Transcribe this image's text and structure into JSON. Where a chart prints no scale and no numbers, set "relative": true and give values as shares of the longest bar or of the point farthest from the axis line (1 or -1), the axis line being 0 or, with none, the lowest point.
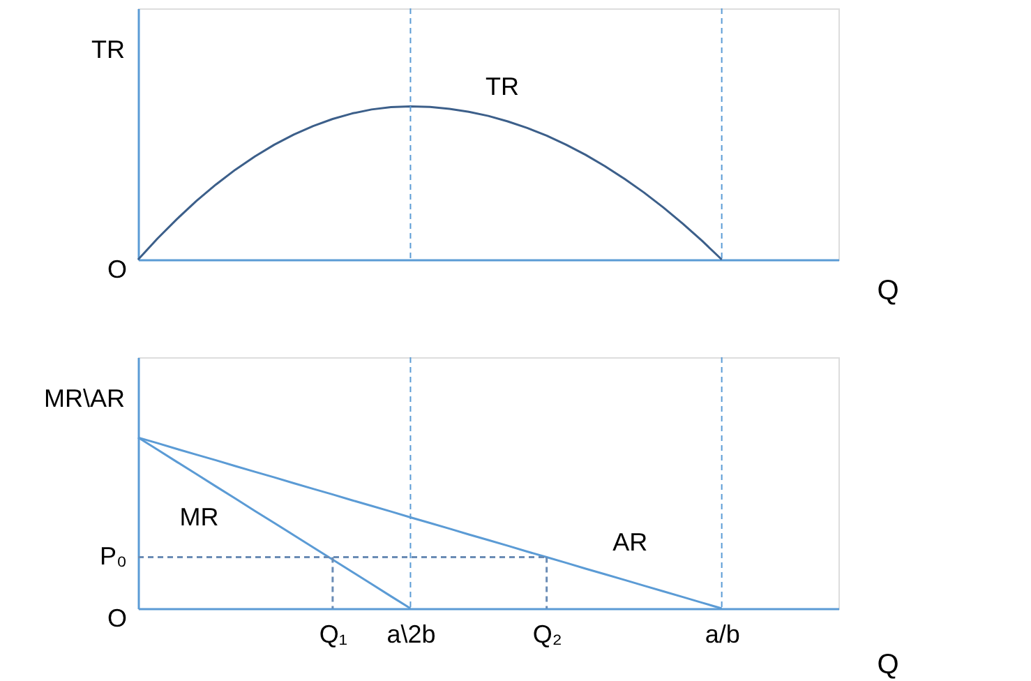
{
  "chart_data": [
    {
      "type": "line",
      "relative": true,
      "ylabel": "TR",
      "xlabel": "Q",
      "tick_labels": false,
      "grid": false,
      "marker": "none",
      "categories": [
        null,
        null,
        null,
        null,
        null,
        null,
        null,
        null,
        null,
        null,
        "Q₁",
        null,
        null,
        null,
        "a\\2b",
        null,
        null,
        null,
        null,
        null,
        null,
        "Q₂",
        null,
        null,
        null,
        null,
        null,
        null,
        null,
        null,
        "a/b",
        null,
        null,
        null,
        null,
        null,
        null
      ],
      "series": [
        {
          "name": "TR",
          "color": "#3c5f8a",
          "line_style": "solid",
          "values": [
            0,
            0.138,
            0.265,
            0.383,
            0.49,
            0.587,
            0.673,
            0.75,
            0.816,
            0.872,
            0.918,
            0.954,
            0.98,
            0.995,
            1,
            0.996,
            0.984,
            0.965,
            0.938,
            0.902,
            0.859,
            0.809,
            0.75,
            0.684,
            0.609,
            0.527,
            0.438,
            0.34,
            0.234,
            0.121,
            0,
            null,
            null,
            null,
            null,
            null,
            null
          ]
        }
      ],
      "ref_lines": [
        {
          "axis": "x",
          "value": "a\\2b",
          "label": null,
          "color": "#5b9bd5",
          "line_style": "dashed"
        },
        {
          "axis": "x",
          "value": "a/b",
          "label": null,
          "color": "#5b9bd5",
          "line_style": "dashed"
        }
      ],
      "annotations": [
        "O"
      ]
    },
    {
      "type": "line",
      "relative": true,
      "ylabel": "MR\\AR",
      "xlabel": "Q",
      "grid": false,
      "marker": "none",
      "categories": [
        null,
        null,
        null,
        null,
        null,
        null,
        null,
        null,
        null,
        null,
        "Q₁",
        null,
        null,
        null,
        "a\\2b",
        null,
        null,
        null,
        null,
        null,
        null,
        "Q₂",
        null,
        null,
        null,
        null,
        null,
        null,
        null,
        null,
        "a/b",
        null,
        null,
        null,
        null,
        null,
        null
      ],
      "series": [
        {
          "name": "AR",
          "color": "#5b9bd5",
          "line_style": "solid",
          "values": [
            1,
            0.967,
            0.933,
            0.9,
            0.867,
            0.833,
            0.8,
            0.767,
            0.733,
            0.7,
            0.667,
            0.633,
            0.6,
            0.567,
            0.533,
            0.5,
            0.467,
            0.433,
            0.4,
            0.367,
            0.333,
            0.3,
            0.267,
            0.233,
            0.2,
            0.167,
            0.133,
            0.1,
            0.067,
            0.033,
            0,
            null,
            null,
            null,
            null,
            null,
            null
          ]
        },
        {
          "name": "MR",
          "color": "#5b9bd5",
          "line_style": "solid",
          "values": [
            1,
            0.929,
            0.857,
            0.786,
            0.714,
            0.643,
            0.571,
            0.5,
            0.429,
            0.357,
            0.286,
            0.214,
            0.143,
            0.071,
            0,
            null,
            null,
            null,
            null,
            null,
            null,
            null,
            null,
            null,
            null,
            null,
            null,
            null,
            null,
            null,
            null,
            null,
            null,
            null,
            null,
            null,
            null
          ]
        },
        {
          "color": "#6a8cb5",
          "line_style": "dashed",
          "values": [
            0.3,
            0.3,
            0.3,
            0.3,
            0.3,
            0.3,
            0.3,
            0.3,
            0.3,
            0.3,
            0.3,
            0.3,
            0.3,
            0.3,
            0.3,
            0.3,
            0.3,
            0.3,
            0.3,
            0.3,
            0.3,
            0.3,
            null,
            null,
            null,
            null,
            null,
            null,
            null,
            null,
            null,
            null,
            null,
            null,
            null,
            null,
            null
          ]
        },
        {
          "color": "#6a8cb5",
          "line_style": "dashed",
          "x": [
            "Q₁",
            "Q₁"
          ],
          "values": [
            0.3,
            0
          ]
        },
        {
          "color": "#6a8cb5",
          "line_style": "dashed",
          "x": [
            "Q₂",
            "Q₂"
          ],
          "values": [
            0.3,
            0
          ]
        }
      ],
      "ref_lines": [
        {
          "axis": "x",
          "value": "a\\2b",
          "label": null,
          "color": "#5b9bd5",
          "line_style": "dashed"
        },
        {
          "axis": "x",
          "value": "a/b",
          "label": null,
          "color": "#5b9bd5",
          "line_style": "dashed"
        }
      ],
      "annotations": [
        "O",
        "P₀"
      ]
    }
  ]
}
